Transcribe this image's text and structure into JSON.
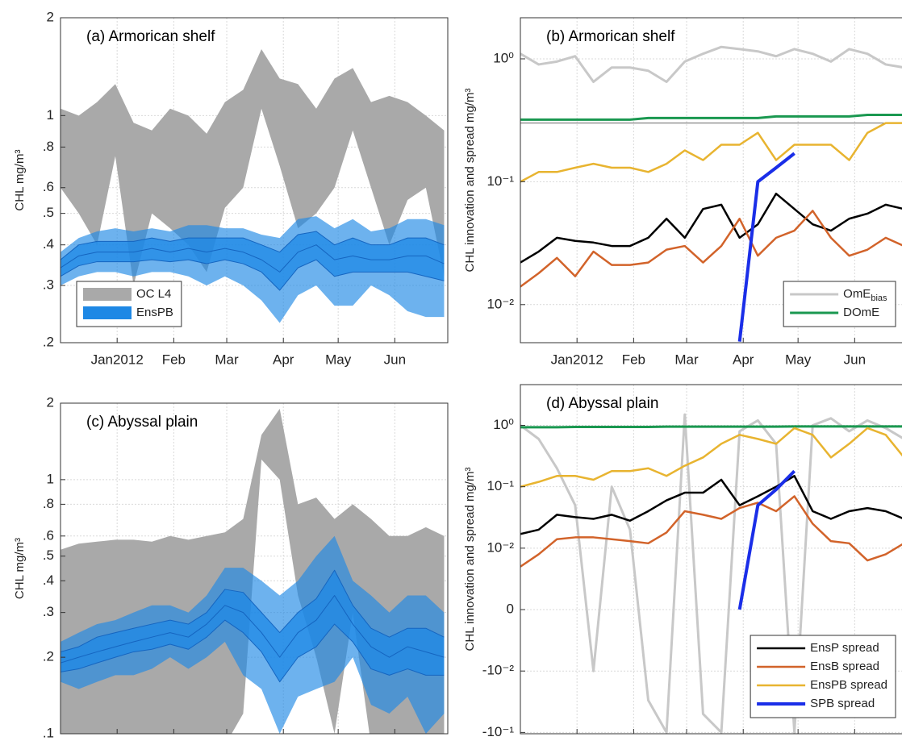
{
  "chart_data": [
    {
      "type": "area",
      "title": "(a) Armorican shelf",
      "ylabel": "CHL mg/m³",
      "yscale": "log",
      "grid": true,
      "legend": "lower left",
      "xlim": [
        0,
        212
      ],
      "ylim": [
        0.2,
        2
      ],
      "xticks": [
        {
          "value": 31,
          "label": "Jan2012"
        },
        {
          "value": 62,
          "label": "Feb"
        },
        {
          "value": 91,
          "label": "Mar"
        },
        {
          "value": 122,
          "label": "Apr"
        },
        {
          "value": 152,
          "label": "May"
        },
        {
          "value": 183,
          "label": "Jun"
        }
      ],
      "yticks": [
        {
          "value": 0.2,
          "label": ".2"
        },
        {
          "value": 0.3,
          "label": ".3"
        },
        {
          "value": 0.4,
          "label": ".4"
        },
        {
          "value": 0.5,
          "label": ".5"
        },
        {
          "value": 0.6,
          "label": ".6"
        },
        {
          "value": 0.8,
          "label": ".8"
        },
        1,
        2
      ],
      "x": [
        0,
        10,
        20,
        30,
        40,
        50,
        60,
        70,
        80,
        90,
        100,
        110,
        120,
        130,
        140,
        150,
        160,
        170,
        180,
        190,
        200,
        210
      ],
      "series": [
        {
          "name": "OC L4",
          "color": "#a9a9a9",
          "lower": [
            0.6,
            0.5,
            0.4,
            0.75,
            0.3,
            0.5,
            0.45,
            0.4,
            0.33,
            0.52,
            0.6,
            1.05,
            0.7,
            0.45,
            0.5,
            0.6,
            0.9,
            0.6,
            0.4,
            0.55,
            0.6,
            0.32
          ],
          "upper": [
            1.05,
            1.0,
            1.1,
            1.25,
            0.95,
            0.9,
            1.05,
            1.0,
            0.88,
            1.1,
            1.2,
            1.6,
            1.3,
            1.25,
            1.05,
            1.3,
            1.4,
            1.1,
            1.15,
            1.1,
            1.0,
            0.9
          ]
        },
        {
          "name": "EnsPB",
          "color": "#1e88e5",
          "lower": [
            0.3,
            0.32,
            0.33,
            0.33,
            0.32,
            0.33,
            0.33,
            0.32,
            0.3,
            0.32,
            0.3,
            0.27,
            0.23,
            0.28,
            0.3,
            0.26,
            0.26,
            0.3,
            0.28,
            0.25,
            0.24,
            0.24
          ],
          "q1": [
            0.32,
            0.345,
            0.355,
            0.355,
            0.355,
            0.36,
            0.355,
            0.36,
            0.35,
            0.36,
            0.35,
            0.33,
            0.29,
            0.34,
            0.36,
            0.32,
            0.33,
            0.33,
            0.33,
            0.33,
            0.32,
            0.31
          ],
          "median": [
            0.34,
            0.37,
            0.38,
            0.38,
            0.38,
            0.39,
            0.38,
            0.39,
            0.38,
            0.39,
            0.38,
            0.36,
            0.33,
            0.38,
            0.4,
            0.36,
            0.37,
            0.36,
            0.36,
            0.37,
            0.37,
            0.35
          ],
          "q3": [
            0.36,
            0.4,
            0.41,
            0.41,
            0.41,
            0.42,
            0.41,
            0.42,
            0.42,
            0.42,
            0.42,
            0.4,
            0.38,
            0.43,
            0.44,
            0.4,
            0.42,
            0.4,
            0.4,
            0.42,
            0.42,
            0.4
          ],
          "upper": [
            0.38,
            0.42,
            0.44,
            0.45,
            0.44,
            0.45,
            0.44,
            0.46,
            0.46,
            0.45,
            0.45,
            0.43,
            0.42,
            0.48,
            0.49,
            0.45,
            0.48,
            0.44,
            0.45,
            0.48,
            0.48,
            0.46
          ]
        }
      ]
    },
    {
      "type": "line",
      "title": "(b) Armorican shelf",
      "ylabel": "CHL innovation and spread mg/m³",
      "yscale": "log",
      "grid": true,
      "legend": "lower right",
      "xlim": [
        0,
        212
      ],
      "ylim": [
        0.0049,
        2.16
      ],
      "xticks": [
        {
          "value": 31,
          "label": "Jan2012"
        },
        {
          "value": 62,
          "label": "Feb"
        },
        {
          "value": 91,
          "label": "Mar"
        },
        {
          "value": 122,
          "label": "Apr"
        },
        {
          "value": 152,
          "label": "May"
        },
        {
          "value": 183,
          "label": "Jun"
        }
      ],
      "yticks": [
        {
          "value": 0.01,
          "label": "10⁻²"
        },
        {
          "value": 0.1,
          "label": "10⁻¹"
        },
        {
          "value": 1,
          "label": "10⁰"
        }
      ],
      "x": [
        0,
        10,
        20,
        30,
        40,
        50,
        60,
        70,
        80,
        90,
        100,
        110,
        120,
        130,
        140,
        150,
        160,
        170,
        180,
        190,
        200,
        210
      ],
      "series": [
        {
          "name": "OmE",
          "name_subscript": "bias",
          "color": "#c8c8c8",
          "width": 3,
          "values": [
            1.1,
            0.9,
            0.95,
            1.05,
            0.65,
            0.85,
            0.85,
            0.8,
            0.65,
            0.95,
            1.1,
            1.25,
            1.2,
            1.15,
            1.05,
            1.2,
            1.1,
            0.95,
            1.2,
            1.1,
            0.9,
            0.85
          ]
        },
        {
          "name": "DOmE",
          "color": "#1a9850",
          "width": 3,
          "values": [
            0.32,
            0.32,
            0.32,
            0.32,
            0.32,
            0.32,
            0.32,
            0.33,
            0.33,
            0.33,
            0.33,
            0.33,
            0.33,
            0.33,
            0.34,
            0.34,
            0.34,
            0.34,
            0.34,
            0.35,
            0.35,
            0.35
          ]
        },
        {
          "color": "#666666",
          "width": 1,
          "values": [
            0.3,
            0.3,
            0.3,
            0.3,
            0.3,
            0.3,
            0.3,
            0.3,
            0.3,
            0.3,
            0.3,
            0.3,
            0.3,
            0.3,
            0.3,
            0.3,
            0.3,
            0.3,
            0.3,
            0.3,
            0.3,
            0.3
          ]
        },
        {
          "color": "#e8b430",
          "width": 2.5,
          "values": [
            0.1,
            0.12,
            0.12,
            0.13,
            0.14,
            0.13,
            0.13,
            0.12,
            0.14,
            0.18,
            0.15,
            0.2,
            0.2,
            0.25,
            0.15,
            0.2,
            0.2,
            0.2,
            0.15,
            0.25,
            0.3,
            0.3
          ]
        },
        {
          "color": "#000000",
          "width": 2.5,
          "values": [
            0.022,
            0.027,
            0.035,
            0.033,
            0.032,
            0.03,
            0.03,
            0.035,
            0.05,
            0.035,
            0.06,
            0.065,
            0.035,
            0.045,
            0.08,
            0.06,
            0.045,
            0.04,
            0.05,
            0.055,
            0.065,
            0.06
          ]
        },
        {
          "color": "#d2632a",
          "width": 2.5,
          "values": [
            0.014,
            0.018,
            0.024,
            0.017,
            0.027,
            0.021,
            0.021,
            0.022,
            0.028,
            0.03,
            0.022,
            0.03,
            0.05,
            0.025,
            0.035,
            0.04,
            0.058,
            0.035,
            0.025,
            0.028,
            0.035,
            0.03
          ]
        },
        {
          "color": "#1a2ee8",
          "width": 4,
          "values": [
            null,
            null,
            null,
            null,
            null,
            null,
            null,
            null,
            null,
            null,
            null,
            null,
            0.005,
            0.1,
            0.13,
            0.17,
            null,
            null,
            null,
            null,
            null,
            null
          ]
        }
      ]
    },
    {
      "type": "area",
      "title": "(c) Abyssal plain",
      "ylabel": "CHL mg/m³",
      "yscale": "log",
      "grid": true,
      "xticklabels": false,
      "xlim": [
        0,
        212
      ],
      "ylim": [
        0.1,
        2
      ],
      "xticks": [
        31,
        62,
        91,
        122,
        152,
        183
      ],
      "yticks": [
        {
          "value": 0.1,
          "label": ".1"
        },
        {
          "value": 0.2,
          "label": ".2"
        },
        {
          "value": 0.3,
          "label": ".3"
        },
        {
          "value": 0.4,
          "label": ".4"
        },
        {
          "value": 0.5,
          "label": ".5"
        },
        {
          "value": 0.6,
          "label": ".6"
        },
        {
          "value": 0.8,
          "label": ".8"
        },
        1,
        2
      ],
      "x": [
        0,
        10,
        20,
        30,
        40,
        50,
        60,
        70,
        80,
        90,
        100,
        110,
        120,
        130,
        140,
        150,
        160,
        170,
        180,
        190,
        200,
        210
      ],
      "series": [
        {
          "color": "#a9a9a9",
          "lower": [
            0.09,
            0.09,
            0.09,
            0.09,
            0.09,
            0.09,
            0.09,
            0.09,
            0.09,
            0.09,
            0.12,
            1.2,
            1.0,
            0.35,
            0.2,
            0.1,
            0.3,
            0.09,
            0.09,
            0.09,
            0.09,
            0.09
          ],
          "upper": [
            0.53,
            0.56,
            0.57,
            0.58,
            0.58,
            0.57,
            0.6,
            0.58,
            0.6,
            0.62,
            0.7,
            1.5,
            1.9,
            0.8,
            0.85,
            0.7,
            0.8,
            0.7,
            0.6,
            0.6,
            0.65,
            0.6
          ]
        },
        {
          "color": "#1e88e5",
          "lower": [
            0.16,
            0.15,
            0.16,
            0.17,
            0.17,
            0.18,
            0.2,
            0.18,
            0.2,
            0.23,
            0.17,
            0.15,
            0.1,
            0.14,
            0.15,
            0.16,
            0.2,
            0.13,
            0.12,
            0.14,
            0.1,
            0.12
          ],
          "q1": [
            0.175,
            0.18,
            0.19,
            0.2,
            0.21,
            0.215,
            0.225,
            0.215,
            0.24,
            0.28,
            0.25,
            0.21,
            0.16,
            0.2,
            0.22,
            0.27,
            0.23,
            0.18,
            0.17,
            0.18,
            0.17,
            0.17
          ],
          "median": [
            0.19,
            0.2,
            0.21,
            0.22,
            0.23,
            0.24,
            0.25,
            0.24,
            0.27,
            0.32,
            0.3,
            0.25,
            0.2,
            0.25,
            0.28,
            0.35,
            0.27,
            0.22,
            0.2,
            0.22,
            0.21,
            0.2
          ],
          "q3": [
            0.21,
            0.22,
            0.24,
            0.25,
            0.26,
            0.27,
            0.28,
            0.27,
            0.3,
            0.37,
            0.36,
            0.3,
            0.25,
            0.3,
            0.34,
            0.44,
            0.32,
            0.26,
            0.24,
            0.26,
            0.26,
            0.24
          ],
          "upper": [
            0.23,
            0.25,
            0.27,
            0.28,
            0.3,
            0.32,
            0.32,
            0.3,
            0.35,
            0.45,
            0.45,
            0.4,
            0.35,
            0.4,
            0.5,
            0.6,
            0.4,
            0.35,
            0.3,
            0.35,
            0.35,
            0.3
          ]
        }
      ]
    },
    {
      "type": "line",
      "title": "(d) Abyssal plain",
      "ylabel": "CHL innovation and spread mg/m³",
      "yscale": "symlog",
      "linthresh": 0.01,
      "grid": true,
      "legend": "lower right",
      "xticklabels": false,
      "xlim": [
        0,
        212
      ],
      "ylim": [
        -0.105,
        4.6
      ],
      "xticks": [
        31,
        62,
        91,
        122,
        152,
        183
      ],
      "yticks": [
        {
          "value": -0.1,
          "label": "-10⁻¹"
        },
        {
          "value": -0.01,
          "label": "-10⁻²"
        },
        0,
        {
          "value": 0.01,
          "label": "10⁻²"
        },
        {
          "value": 0.1,
          "label": "10⁻¹"
        },
        {
          "value": 1,
          "label": "10⁰"
        }
      ],
      "x": [
        0,
        10,
        20,
        30,
        40,
        50,
        60,
        70,
        80,
        90,
        100,
        110,
        120,
        130,
        140,
        150,
        160,
        170,
        180,
        190,
        200,
        210
      ],
      "series": [
        {
          "color": "#c8c8c8",
          "width": 3,
          "values": [
            1.0,
            0.6,
            0.2,
            0.05,
            -0.01,
            0.1,
            0.02,
            -0.03,
            -0.1,
            1.5,
            -0.05,
            -0.1,
            0.8,
            1.2,
            0.5,
            -0.1,
            1.0,
            1.3,
            0.8,
            1.2,
            0.9,
            0.6
          ]
        },
        {
          "color": "#1a9850",
          "width": 3,
          "values": [
            0.93,
            0.93,
            0.93,
            0.94,
            0.94,
            0.94,
            0.94,
            0.94,
            0.95,
            0.95,
            0.95,
            0.95,
            0.95,
            0.95,
            0.95,
            0.96,
            0.96,
            0.96,
            0.96,
            0.96,
            0.96,
            0.96
          ]
        },
        {
          "name": "EnsP  spread",
          "color": "#000000",
          "width": 2.5,
          "values": [
            0.017,
            0.02,
            0.035,
            0.032,
            0.03,
            0.035,
            0.028,
            0.04,
            0.06,
            0.08,
            0.08,
            0.13,
            0.05,
            0.07,
            0.1,
            0.15,
            0.04,
            0.03,
            0.04,
            0.045,
            0.04,
            0.03
          ]
        },
        {
          "name": "EnsB  spread",
          "color": "#d2632a",
          "width": 2.5,
          "values": [
            0.007,
            0.009,
            0.014,
            0.015,
            0.015,
            0.014,
            0.013,
            0.012,
            0.018,
            0.04,
            0.035,
            0.03,
            0.045,
            0.055,
            0.04,
            0.07,
            0.025,
            0.013,
            0.012,
            0.008,
            0.009,
            0.012
          ]
        },
        {
          "name": "EnsPB spread",
          "color": "#e8b430",
          "width": 2.5,
          "values": [
            0.1,
            0.12,
            0.15,
            0.15,
            0.13,
            0.18,
            0.18,
            0.2,
            0.15,
            0.22,
            0.3,
            0.5,
            0.7,
            0.6,
            0.5,
            0.9,
            0.7,
            0.3,
            0.5,
            0.9,
            0.7,
            0.3
          ]
        },
        {
          "name": "SPB  spread",
          "color": "#1a2ee8",
          "width": 4,
          "values": [
            null,
            null,
            null,
            null,
            null,
            null,
            null,
            null,
            null,
            null,
            null,
            null,
            0,
            0.05,
            0.09,
            0.18,
            null,
            null,
            null,
            null,
            null,
            null
          ]
        }
      ]
    }
  ]
}
